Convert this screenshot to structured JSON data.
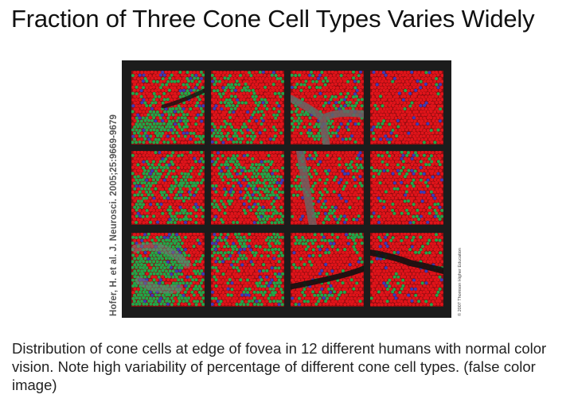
{
  "slide": {
    "title": "Fraction of Three Cone Cell Types Varies Widely",
    "caption": "Distribution of cone cells at edge of fovea in 12 different humans with normal color vision. Note high variability of percentage of different cone cell types. (false color image)"
  },
  "figure": {
    "side_credit": "Hofer, H. et al. J. Neurosci. 2005;25:9669-9679",
    "copyright": "© 2007 Thomson Higher Education",
    "description": "3x4 grid of false-color retinal mosaics; red = L cones, green = M cones, blue = S cones",
    "colors": {
      "L_cone": "#e0141a",
      "M_cone": "#1fa84a",
      "S_cone": "#3b3bb8",
      "background": "#1c1c1c",
      "vessel": "#555555"
    },
    "tiles": [
      {
        "row": 0,
        "col": 0,
        "red": 0.5,
        "green": 0.42,
        "blue": 0.08,
        "vessel": "diag-dark"
      },
      {
        "row": 0,
        "col": 1,
        "red": 0.66,
        "green": 0.28,
        "blue": 0.06,
        "vessel": "none"
      },
      {
        "row": 0,
        "col": 2,
        "red": 0.7,
        "green": 0.24,
        "blue": 0.06,
        "vessel": "gray-y"
      },
      {
        "row": 0,
        "col": 3,
        "red": 0.88,
        "green": 0.06,
        "blue": 0.06,
        "vessel": "none"
      },
      {
        "row": 1,
        "col": 0,
        "red": 0.58,
        "green": 0.36,
        "blue": 0.06,
        "vessel": "none"
      },
      {
        "row": 1,
        "col": 1,
        "red": 0.6,
        "green": 0.34,
        "blue": 0.06,
        "vessel": "none"
      },
      {
        "row": 1,
        "col": 2,
        "red": 0.76,
        "green": 0.18,
        "blue": 0.06,
        "vessel": "gray-v"
      },
      {
        "row": 1,
        "col": 3,
        "red": 0.8,
        "green": 0.15,
        "blue": 0.05,
        "vessel": "none"
      },
      {
        "row": 2,
        "col": 0,
        "red": 0.32,
        "green": 0.58,
        "blue": 0.1,
        "vessel": "gray-patch"
      },
      {
        "row": 2,
        "col": 1,
        "red": 0.64,
        "green": 0.3,
        "blue": 0.06,
        "vessel": "none"
      },
      {
        "row": 2,
        "col": 2,
        "red": 0.74,
        "green": 0.2,
        "blue": 0.06,
        "vessel": "dark-h"
      },
      {
        "row": 2,
        "col": 3,
        "red": 0.82,
        "green": 0.13,
        "blue": 0.05,
        "vessel": "dark-h2"
      }
    ]
  }
}
